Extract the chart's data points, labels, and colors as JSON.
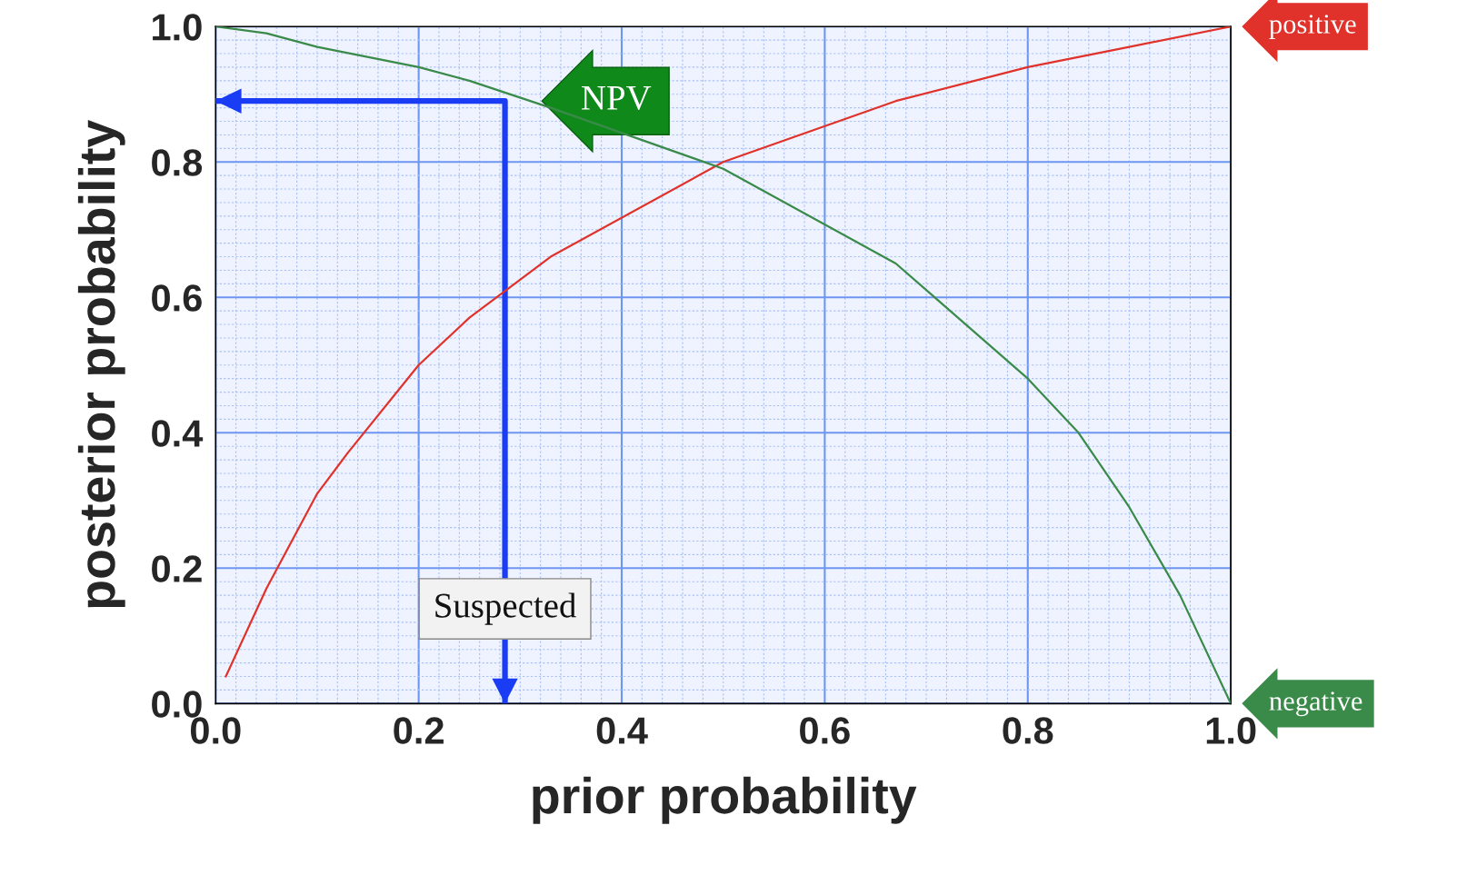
{
  "chart_data": {
    "type": "line",
    "xlabel": "prior probability",
    "ylabel": "posterior probability",
    "xlim": [
      0,
      1
    ],
    "ylim": [
      0,
      1
    ],
    "xticks": [
      {
        "value": 0,
        "label": "0.0"
      },
      {
        "value": 0.02,
        "label": null
      },
      {
        "value": 0.04,
        "label": null
      },
      {
        "value": 0.06,
        "label": null
      },
      {
        "value": 0.08,
        "label": null
      },
      {
        "value": 0.1,
        "label": null
      },
      {
        "value": 0.12,
        "label": null
      },
      {
        "value": 0.14,
        "label": null
      },
      {
        "value": 0.16,
        "label": null
      },
      {
        "value": 0.18,
        "label": null
      },
      0.2,
      {
        "value": 0.22,
        "label": null
      },
      {
        "value": 0.24,
        "label": null
      },
      {
        "value": 0.26,
        "label": null
      },
      {
        "value": 0.28,
        "label": null
      },
      {
        "value": 0.3,
        "label": null
      },
      {
        "value": 0.32,
        "label": null
      },
      {
        "value": 0.34,
        "label": null
      },
      {
        "value": 0.36,
        "label": null
      },
      {
        "value": 0.38,
        "label": null
      },
      0.4,
      {
        "value": 0.42,
        "label": null
      },
      {
        "value": 0.44,
        "label": null
      },
      {
        "value": 0.46,
        "label": null
      },
      {
        "value": 0.48,
        "label": null
      },
      {
        "value": 0.5,
        "label": null
      },
      {
        "value": 0.52,
        "label": null
      },
      {
        "value": 0.54,
        "label": null
      },
      {
        "value": 0.56,
        "label": null
      },
      {
        "value": 0.58,
        "label": null
      },
      0.6,
      {
        "value": 0.62,
        "label": null
      },
      {
        "value": 0.64,
        "label": null
      },
      {
        "value": 0.66,
        "label": null
      },
      {
        "value": 0.68,
        "label": null
      },
      {
        "value": 0.7,
        "label": null
      },
      {
        "value": 0.72,
        "label": null
      },
      {
        "value": 0.74,
        "label": null
      },
      {
        "value": 0.76,
        "label": null
      },
      {
        "value": 0.78,
        "label": null
      },
      0.8,
      {
        "value": 0.82,
        "label": null
      },
      {
        "value": 0.84,
        "label": null
      },
      {
        "value": 0.86,
        "label": null
      },
      {
        "value": 0.88,
        "label": null
      },
      {
        "value": 0.9,
        "label": null
      },
      {
        "value": 0.92,
        "label": null
      },
      {
        "value": 0.94,
        "label": null
      },
      {
        "value": 0.96,
        "label": null
      },
      {
        "value": 0.98,
        "label": null
      },
      {
        "value": 1,
        "label": "1.0"
      }
    ],
    "yticks": [
      {
        "value": 0,
        "label": "0.0"
      },
      {
        "value": 0.02,
        "label": null
      },
      {
        "value": 0.04,
        "label": null
      },
      {
        "value": 0.06,
        "label": null
      },
      {
        "value": 0.08,
        "label": null
      },
      {
        "value": 0.1,
        "label": null
      },
      {
        "value": 0.12,
        "label": null
      },
      {
        "value": 0.14,
        "label": null
      },
      {
        "value": 0.16,
        "label": null
      },
      {
        "value": 0.18,
        "label": null
      },
      0.2,
      {
        "value": 0.22,
        "label": null
      },
      {
        "value": 0.24,
        "label": null
      },
      {
        "value": 0.26,
        "label": null
      },
      {
        "value": 0.28,
        "label": null
      },
      {
        "value": 0.3,
        "label": null
      },
      {
        "value": 0.32,
        "label": null
      },
      {
        "value": 0.34,
        "label": null
      },
      {
        "value": 0.36,
        "label": null
      },
      {
        "value": 0.38,
        "label": null
      },
      0.4,
      {
        "value": 0.42,
        "label": null
      },
      {
        "value": 0.44,
        "label": null
      },
      {
        "value": 0.46,
        "label": null
      },
      {
        "value": 0.48,
        "label": null
      },
      {
        "value": 0.5,
        "label": null
      },
      {
        "value": 0.52,
        "label": null
      },
      {
        "value": 0.54,
        "label": null
      },
      {
        "value": 0.56,
        "label": null
      },
      {
        "value": 0.58,
        "label": null
      },
      0.6,
      {
        "value": 0.62,
        "label": null
      },
      {
        "value": 0.64,
        "label": null
      },
      {
        "value": 0.66,
        "label": null
      },
      {
        "value": 0.68,
        "label": null
      },
      {
        "value": 0.7,
        "label": null
      },
      {
        "value": 0.72,
        "label": null
      },
      {
        "value": 0.74,
        "label": null
      },
      {
        "value": 0.76,
        "label": null
      },
      {
        "value": 0.78,
        "label": null
      },
      0.8,
      {
        "value": 0.82,
        "label": null
      },
      {
        "value": 0.84,
        "label": null
      },
      {
        "value": 0.86,
        "label": null
      },
      {
        "value": 0.88,
        "label": null
      },
      {
        "value": 0.9,
        "label": null
      },
      {
        "value": 0.92,
        "label": null
      },
      {
        "value": 0.94,
        "label": null
      },
      {
        "value": 0.96,
        "label": null
      },
      {
        "value": 0.98,
        "label": null
      },
      {
        "value": 1,
        "label": "1.0"
      }
    ],
    "grid": true,
    "marker": "none",
    "line_style": "solid",
    "series": [
      {
        "name": "positive",
        "color": "#e0322a",
        "x": [
          0.01,
          0.05,
          0.1,
          0.13,
          0.2,
          0.25,
          0.33,
          0.5,
          0.67,
          0.8,
          0.9,
          1.0
        ],
        "values": [
          0.04,
          0.17,
          0.31,
          0.37,
          0.5,
          0.57,
          0.66,
          0.8,
          0.89,
          0.94,
          0.97,
          1.0
        ]
      },
      {
        "name": "negative",
        "color": "#3a8a4a",
        "x": [
          0,
          0.05,
          0.1,
          0.2,
          0.25,
          0.33,
          0.5,
          0.67,
          0.8,
          0.85,
          0.9,
          0.95,
          1.0
        ],
        "values": [
          1.0,
          0.99,
          0.97,
          0.94,
          0.92,
          0.88,
          0.79,
          0.65,
          0.48,
          0.4,
          0.29,
          0.16,
          0.0
        ]
      },
      {
        "color": "#1a3cf5",
        "x": [
          0,
          0.285,
          0.285
        ],
        "values": [
          0.89,
          0.89,
          0
        ]
      }
    ],
    "annotations": [
      "NPV",
      "Suspected"
    ]
  }
}
